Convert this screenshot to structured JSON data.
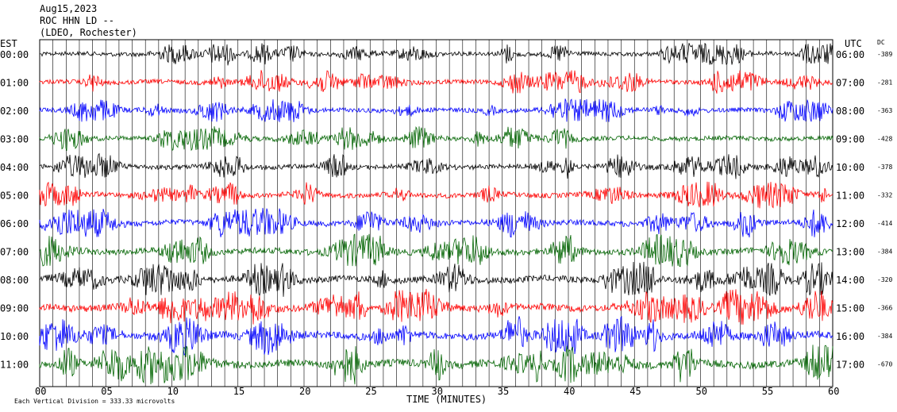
{
  "header": {
    "date": "Aug15,2023",
    "station": "ROC HHN LD --",
    "network": "(LDEO, Rochester)"
  },
  "left_axis_title": "EST",
  "right_axis_title": "UTC",
  "dc_title": "DC",
  "xlabel": "TIME (MINUTES)",
  "scale_note": "Each Vertical Division = 333.33 microvolts",
  "chart_data": {
    "type": "line",
    "title": "",
    "xlabel": "TIME (MINUTES)",
    "xlim": [
      0,
      60
    ],
    "x_ticks": [
      "00",
      "05",
      "10",
      "15",
      "20",
      "25",
      "30",
      "35",
      "40",
      "45",
      "50",
      "55",
      "60"
    ],
    "trace_colors": [
      "#000000",
      "#ff0000",
      "#0000ff",
      "#006400"
    ],
    "rows": [
      {
        "est": "00:00",
        "utc": "06:00",
        "dc": "-389"
      },
      {
        "est": "01:00",
        "utc": "07:00",
        "dc": "-281"
      },
      {
        "est": "02:00",
        "utc": "08:00",
        "dc": "-363"
      },
      {
        "est": "03:00",
        "utc": "09:00",
        "dc": "-428"
      },
      {
        "est": "04:00",
        "utc": "10:00",
        "dc": "-378"
      },
      {
        "est": "05:00",
        "utc": "11:00",
        "dc": "-332"
      },
      {
        "est": "06:00",
        "utc": "12:00",
        "dc": "-414"
      },
      {
        "est": "07:00",
        "utc": "13:00",
        "dc": "-384"
      },
      {
        "est": "08:00",
        "utc": "14:00",
        "dc": "-320"
      },
      {
        "est": "09:00",
        "utc": "15:00",
        "dc": "-366"
      },
      {
        "est": "10:00",
        "utc": "16:00",
        "dc": "-384"
      },
      {
        "est": "11:00",
        "utc": "17:00",
        "dc": "-670"
      }
    ],
    "noise_level": [
      0.35,
      0.4,
      0.4,
      0.4,
      0.45,
      0.5,
      0.6,
      0.7,
      0.75,
      0.8,
      0.85,
      0.9
    ]
  }
}
